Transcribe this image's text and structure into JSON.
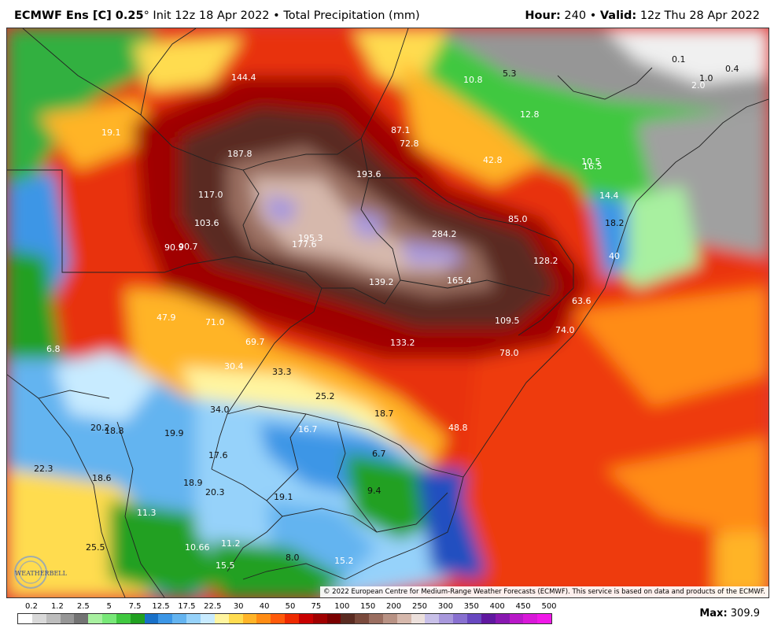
{
  "header": {
    "model": "ECMWF Ens [C] 0.25",
    "degree": "°",
    "init": "Init 12z 18 Apr 2022",
    "separator": "•",
    "field": "Total Precipitation (mm)",
    "hour_label": "Hour:",
    "hour_value": "240",
    "valid_label": "Valid:",
    "valid_value": "12z Thu 28 Apr 2022"
  },
  "map_labels": [
    {
      "text": "144.4"
    },
    {
      "text": "19.1"
    },
    {
      "text": "87.1"
    },
    {
      "text": "72.8"
    },
    {
      "text": "10.8"
    },
    {
      "text": "5.3"
    },
    {
      "text": "0.1"
    },
    {
      "text": "0.4"
    },
    {
      "text": "1.0"
    },
    {
      "text": "2.0"
    },
    {
      "text": "12.8"
    },
    {
      "text": "42.8"
    },
    {
      "text": "10.5"
    },
    {
      "text": "16.5"
    },
    {
      "text": "187.8"
    },
    {
      "text": "193.6"
    },
    {
      "text": "117.0"
    },
    {
      "text": "14.4"
    },
    {
      "text": "85.0"
    },
    {
      "text": "103.6"
    },
    {
      "text": "18.2"
    },
    {
      "text": "284.2"
    },
    {
      "text": "195.3"
    },
    {
      "text": "177.6"
    },
    {
      "text": "90.9"
    },
    {
      "text": "90.7"
    },
    {
      "text": "128.2"
    },
    {
      "text": "40"
    },
    {
      "text": "139.2"
    },
    {
      "text": "165.4"
    },
    {
      "text": "63.6"
    },
    {
      "text": "47.9"
    },
    {
      "text": "71.0"
    },
    {
      "text": "109.5"
    },
    {
      "text": "74.0"
    },
    {
      "text": "6.8"
    },
    {
      "text": "69.7"
    },
    {
      "text": "133.2"
    },
    {
      "text": "78.0"
    },
    {
      "text": "30.4"
    },
    {
      "text": "33.3"
    },
    {
      "text": "25.2"
    },
    {
      "text": "34.0"
    },
    {
      "text": "18.7"
    },
    {
      "text": "20.2"
    },
    {
      "text": "18.8"
    },
    {
      "text": "19.9"
    },
    {
      "text": "16.7"
    },
    {
      "text": "48.8"
    },
    {
      "text": "17.6"
    },
    {
      "text": "6.7"
    },
    {
      "text": "22.3"
    },
    {
      "text": "18.6"
    },
    {
      "text": "18.9"
    },
    {
      "text": "20.3"
    },
    {
      "text": "19.1"
    },
    {
      "text": "9.4"
    },
    {
      "text": "11.3"
    },
    {
      "text": "25.5"
    },
    {
      "text": "10.66"
    },
    {
      "text": "11.2"
    },
    {
      "text": "8.0"
    },
    {
      "text": "15.2"
    },
    {
      "text": "15.5"
    }
  ],
  "copyright": "© 2022 European Centre for Medium-Range Weather Forecasts (ECMWF). This service is based on data and products of the ECMWF.",
  "logo_text": "WEATHERBELL",
  "legend": {
    "ticks": [
      "0.2",
      "1.2",
      "2.5",
      "5",
      "7.5",
      "12.5",
      "17.5",
      "22.5",
      "30",
      "40",
      "50",
      "75",
      "100",
      "150",
      "200",
      "250",
      "300",
      "350",
      "400",
      "450",
      "500"
    ],
    "colors": [
      "#ffffff",
      "#d9d9d9",
      "#bdbdbd",
      "#969696",
      "#737373",
      "#a8f0a0",
      "#78e878",
      "#40c840",
      "#20a020",
      "#1870c8",
      "#3c96e6",
      "#64b4f0",
      "#96d2fa",
      "#c8ebff",
      "#fff5a0",
      "#ffdc50",
      "#ffb428",
      "#ff8c14",
      "#ff5a0a",
      "#ee2a00",
      "#c80000",
      "#a00000",
      "#7a0000",
      "#5a2b21",
      "#7a4a3c",
      "#9a6e60",
      "#b89284",
      "#d6b8ac",
      "#ece0dc",
      "#c8c0e8",
      "#a898dc",
      "#8870d0",
      "#6848c0",
      "#6018a0",
      "#8818b0",
      "#b818c8",
      "#d818d8",
      "#f018e8"
    ]
  },
  "max": {
    "label": "Max:",
    "value": "309.9"
  }
}
